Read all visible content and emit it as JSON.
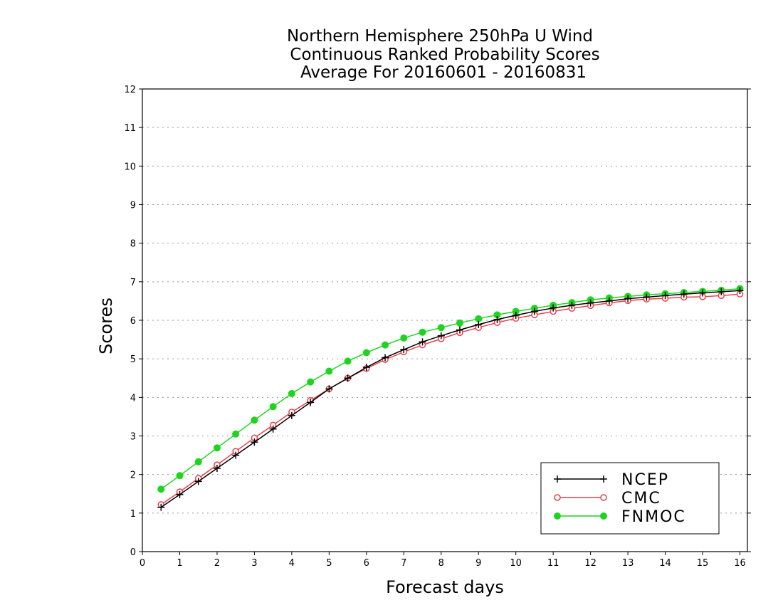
{
  "chart_data": {
    "type": "line",
    "title": [
      "Northern Hemisphere 250hPa U Wind",
      "Continuous Ranked Probability Scores",
      "Average For 20160601 - 20160831"
    ],
    "xlabel": "Forecast days",
    "ylabel": "Scores",
    "xlim": [
      0,
      16.2
    ],
    "ylim": [
      0,
      12
    ],
    "xticks": [
      0,
      1,
      2,
      3,
      4,
      5,
      6,
      7,
      8,
      9,
      10,
      11,
      12,
      13,
      14,
      15,
      16
    ],
    "yticks": [
      0,
      1,
      2,
      3,
      4,
      5,
      6,
      7,
      8,
      9,
      10,
      11,
      12
    ],
    "grid": true,
    "legend_position": "bottom-right",
    "x": [
      0.5,
      1.0,
      1.5,
      2.0,
      2.5,
      3.0,
      3.5,
      4.0,
      4.5,
      5.0,
      5.5,
      6.0,
      6.5,
      7.0,
      7.5,
      8.0,
      8.5,
      9.0,
      9.5,
      10.0,
      10.5,
      11.0,
      11.5,
      12.0,
      12.5,
      13.0,
      13.5,
      14.0,
      14.5,
      15.0,
      15.5,
      16.0
    ],
    "series": [
      {
        "name": "NCEP",
        "color": "#000000",
        "marker": "plus",
        "values": [
          1.15,
          1.48,
          1.82,
          2.16,
          2.5,
          2.84,
          3.18,
          3.53,
          3.87,
          4.22,
          4.5,
          4.78,
          5.03,
          5.24,
          5.44,
          5.6,
          5.75,
          5.89,
          6.02,
          6.13,
          6.23,
          6.32,
          6.39,
          6.45,
          6.5,
          6.56,
          6.6,
          6.64,
          6.68,
          6.71,
          6.74,
          6.77
        ]
      },
      {
        "name": "CMC",
        "color": "#e8414a",
        "marker": "open-circle",
        "values": [
          1.22,
          1.55,
          1.9,
          2.25,
          2.6,
          2.95,
          3.28,
          3.62,
          3.92,
          4.22,
          4.5,
          4.75,
          4.98,
          5.18,
          5.36,
          5.52,
          5.68,
          5.81,
          5.94,
          6.05,
          6.14,
          6.23,
          6.31,
          6.38,
          6.45,
          6.51,
          6.55,
          6.57,
          6.6,
          6.61,
          6.64,
          6.68
        ]
      },
      {
        "name": "FNMOC",
        "color": "#1ed41e",
        "marker": "filled-circle",
        "values": [
          1.62,
          1.97,
          2.33,
          2.69,
          3.05,
          3.41,
          3.76,
          4.1,
          4.4,
          4.68,
          4.94,
          5.16,
          5.36,
          5.54,
          5.69,
          5.81,
          5.93,
          6.04,
          6.14,
          6.23,
          6.31,
          6.39,
          6.46,
          6.53,
          6.58,
          6.62,
          6.66,
          6.69,
          6.72,
          6.75,
          6.78,
          6.82
        ]
      }
    ]
  }
}
